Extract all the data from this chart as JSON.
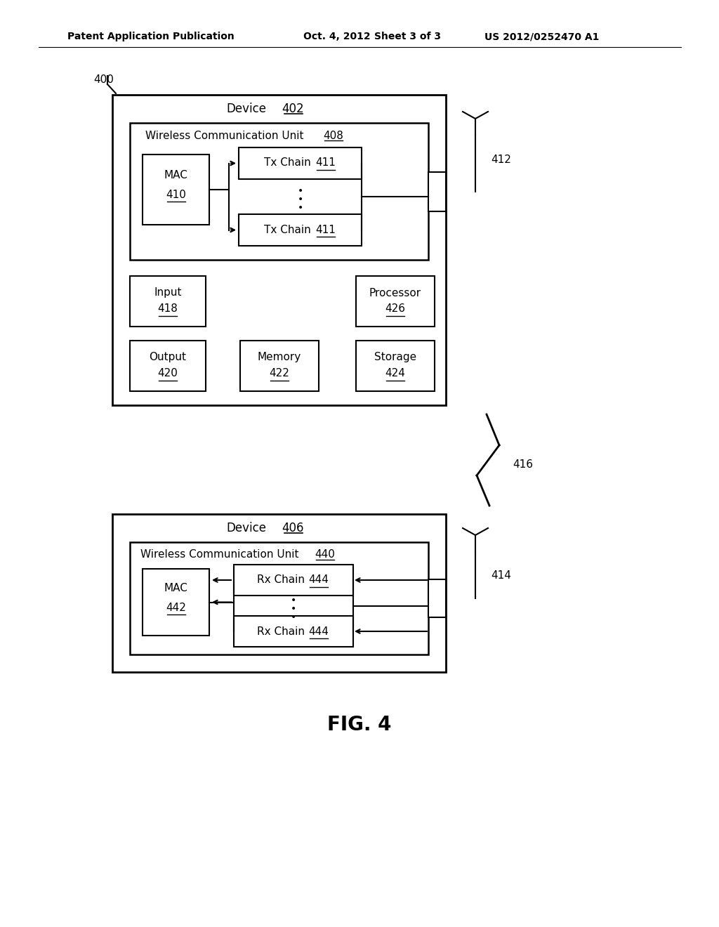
{
  "bg_color": "#ffffff",
  "header_text": "Patent Application Publication",
  "header_date": "Oct. 4, 2012",
  "header_sheet": "Sheet 3 of 3",
  "header_patent": "US 2012/0252470 A1",
  "fig_label": "FIG. 4",
  "fig_number": "400",
  "device402_label": "Device",
  "device402_num": "402",
  "wcu408_label": "Wireless Communication Unit",
  "wcu408_num": "408",
  "mac410_line1": "MAC",
  "mac410_line2": "410",
  "txchain411_label": "Tx Chain",
  "txchain411_num": "411",
  "ant412_num": "412",
  "input418_line1": "Input",
  "input418_line2": "418",
  "processor426_line1": "Processor",
  "processor426_line2": "426",
  "output420_line1": "Output",
  "output420_line2": "420",
  "memory422_line1": "Memory",
  "memory422_line2": "422",
  "storage424_line1": "Storage",
  "storage424_line2": "424",
  "link416_num": "416",
  "device406_label": "Device",
  "device406_num": "406",
  "wcu440_label": "Wireless Communication Unit",
  "wcu440_num": "440",
  "mac442_line1": "MAC",
  "mac442_line2": "442",
  "rxchain444_label": "Rx Chain",
  "rxchain444_num": "444",
  "ant414_num": "414"
}
